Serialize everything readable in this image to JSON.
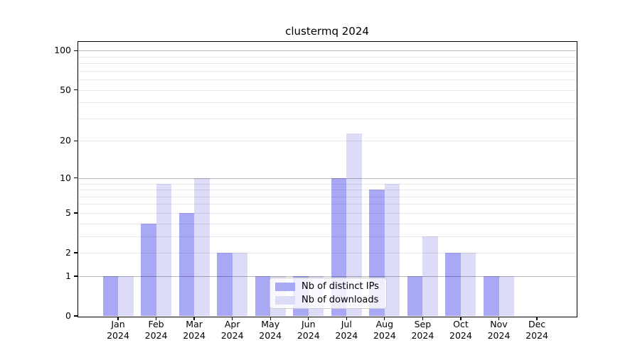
{
  "title": "clustermq 2024",
  "legend": {
    "items": [
      {
        "label": "Nb of distinct IPs",
        "color": "#a8a8f5"
      },
      {
        "label": "Nb of downloads",
        "color": "#dcdcf8"
      }
    ]
  },
  "y_axis": {
    "tick_labels": [
      "0",
      "1",
      "2",
      "5",
      "10",
      "20",
      "50",
      "100"
    ]
  },
  "chart_data": {
    "type": "bar",
    "title": "clustermq 2024",
    "categories": [
      "Jan 2024",
      "Feb 2024",
      "Mar 2024",
      "Apr 2024",
      "May 2024",
      "Jun 2024",
      "Jul 2024",
      "Aug 2024",
      "Sep 2024",
      "Oct 2024",
      "Nov 2024",
      "Dec 2024"
    ],
    "series": [
      {
        "name": "Nb of distinct IPs",
        "color": "#a8a8f5",
        "values": [
          1,
          4,
          5,
          2,
          1,
          1,
          10,
          8,
          1,
          2,
          1,
          0
        ]
      },
      {
        "name": "Nb of downloads",
        "color": "#dcdcf8",
        "values": [
          1,
          9,
          10,
          2,
          1,
          1,
          23,
          9,
          3,
          2,
          1,
          0
        ]
      }
    ],
    "yscale": "log1p",
    "ylim": [
      0,
      116
    ],
    "yticks": [
      0,
      1,
      2,
      5,
      10,
      20,
      50,
      100
    ],
    "major_gridlines": [
      1,
      10,
      100
    ],
    "minor_gridlines": [
      2,
      3,
      4,
      5,
      6,
      7,
      8,
      9,
      20,
      30,
      40,
      50,
      60,
      70,
      80,
      90
    ],
    "grid": true,
    "legend_position": "lower center inside",
    "xlabel": "",
    "ylabel": ""
  }
}
